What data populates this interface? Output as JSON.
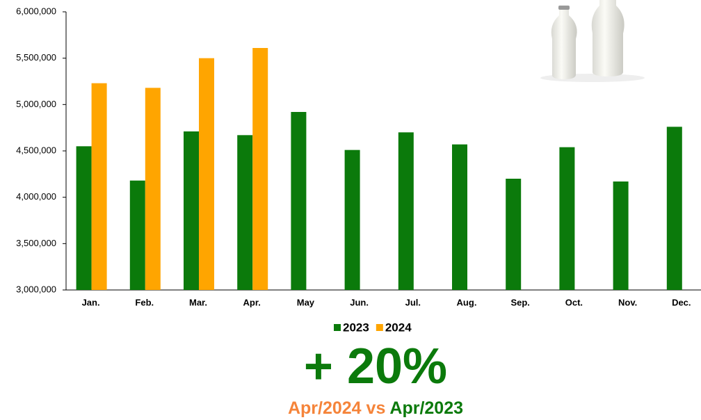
{
  "chart_data": {
    "type": "bar",
    "categories": [
      "Jan.",
      "Feb.",
      "Mar.",
      "Apr.",
      "May",
      "Jun.",
      "Jul.",
      "Aug.",
      "Sep.",
      "Oct.",
      "Nov.",
      "Dec."
    ],
    "series": [
      {
        "name": "2023",
        "color": "#0b7a0b",
        "values": [
          4550000,
          4180000,
          4710000,
          4670000,
          4920000,
          4510000,
          4700000,
          4570000,
          4200000,
          4540000,
          4170000,
          4760000
        ]
      },
      {
        "name": "2024",
        "color": "#ffa500",
        "values": [
          5230000,
          5180000,
          5500000,
          5610000,
          null,
          null,
          null,
          null,
          null,
          null,
          null,
          null
        ]
      }
    ],
    "ylim": [
      3000000,
      6000000
    ],
    "yticks": [
      {
        "value": 3000000,
        "label": "3,000,000"
      },
      {
        "value": 3500000,
        "label": "3,500,000"
      },
      {
        "value": 4000000,
        "label": "4,000,000"
      },
      {
        "value": 4500000,
        "label": "4,500,000"
      },
      {
        "value": 5000000,
        "label": "5,000,000"
      },
      {
        "value": 5500000,
        "label": "5,500,000"
      },
      {
        "value": 6000000,
        "label": "6,000,000"
      }
    ],
    "legend": "bottom",
    "headline": "+ 20%",
    "comparison": [
      "Apr/2024",
      "vs",
      "Apr/2023"
    ]
  }
}
